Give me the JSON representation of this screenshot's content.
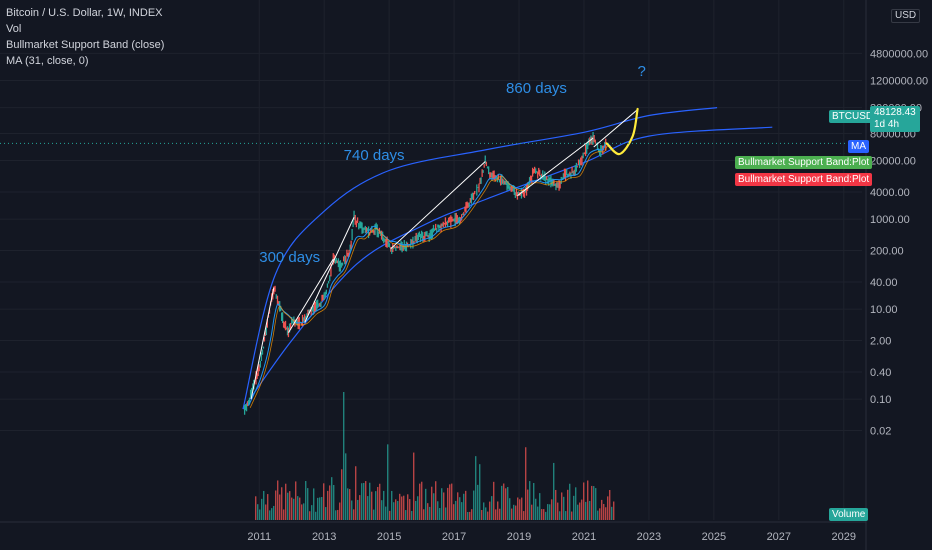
{
  "legend": {
    "symbol": "Bitcoin / U.S. Dollar, 1W, INDEX",
    "vol": "Vol",
    "band": "Bullmarket Support Band (close)",
    "ma": "MA (31, close, 0)"
  },
  "currency_label": "USD",
  "tags": {
    "ticker": "BTCUSD",
    "price": "48128.43",
    "countdown": "1d 4h",
    "ma": "MA",
    "band_green": "Bullmarket Support Band:Plot",
    "band_red": "Bullmarket Support Band:Plot",
    "volume": "Volume"
  },
  "colors": {
    "background": "#131722",
    "up": "#26a69a",
    "down": "#ef5350",
    "channel": "#2962ff",
    "annotation": "#2e8ee6",
    "projection": "#ffeb3b",
    "white_line": "#ffffff"
  },
  "chart_data": {
    "type": "line",
    "scale": "log",
    "x_ticks": [
      "2011",
      "2013",
      "2015",
      "2017",
      "2019",
      "2021",
      "2023",
      "2025",
      "2027",
      "2029"
    ],
    "y_ticks": [
      "4800000.00",
      "1200000.00",
      "300000.00",
      "80000.00",
      "20000.00",
      "4000.00",
      "1000.00",
      "200.00",
      "40.00",
      "10.00",
      "2.00",
      "0.40",
      "0.10",
      "0.02"
    ],
    "annotations": [
      "300 days",
      "740 days",
      "860 days",
      "?"
    ],
    "series": [
      {
        "name": "BTCUSD",
        "points": [
          [
            2010.55,
            0.06
          ],
          [
            2010.7,
            0.1
          ],
          [
            2010.9,
            0.3
          ],
          [
            2011.1,
            1.0
          ],
          [
            2011.25,
            5
          ],
          [
            2011.35,
            12
          ],
          [
            2011.45,
            30
          ],
          [
            2011.6,
            14
          ],
          [
            2011.75,
            5
          ],
          [
            2011.9,
            3
          ],
          [
            2012.0,
            5
          ],
          [
            2012.3,
            5
          ],
          [
            2012.6,
            10
          ],
          [
            2012.9,
            13
          ],
          [
            2013.1,
            30
          ],
          [
            2013.28,
            130
          ],
          [
            2013.5,
            90
          ],
          [
            2013.8,
            200
          ],
          [
            2013.92,
            1100
          ],
          [
            2014.1,
            700
          ],
          [
            2014.4,
            500
          ],
          [
            2014.6,
            600
          ],
          [
            2014.9,
            330
          ],
          [
            2015.05,
            220
          ],
          [
            2015.3,
            240
          ],
          [
            2015.6,
            250
          ],
          [
            2015.9,
            400
          ],
          [
            2016.2,
            420
          ],
          [
            2016.5,
            650
          ],
          [
            2016.9,
            900
          ],
          [
            2017.2,
            1100
          ],
          [
            2017.5,
            2500
          ],
          [
            2017.8,
            6000
          ],
          [
            2017.96,
            19000
          ],
          [
            2018.1,
            10000
          ],
          [
            2018.3,
            8000
          ],
          [
            2018.6,
            6500
          ],
          [
            2018.95,
            3300
          ],
          [
            2019.2,
            4000
          ],
          [
            2019.45,
            12000
          ],
          [
            2019.7,
            9000
          ],
          [
            2019.95,
            7200
          ],
          [
            2020.2,
            5000
          ],
          [
            2020.4,
            9500
          ],
          [
            2020.7,
            11000
          ],
          [
            2020.9,
            19000
          ],
          [
            2021.05,
            35000
          ],
          [
            2021.28,
            63000
          ],
          [
            2021.45,
            36000
          ],
          [
            2021.55,
            33000
          ],
          [
            2021.7,
            47000
          ]
        ]
      },
      {
        "name": "Volume",
        "values_2yr_groups": [
          0.5,
          0.45,
          0.3,
          0.35,
          0.3,
          0.45,
          0.35,
          0.3
        ]
      }
    ],
    "channel_upper": [
      [
        2010.5,
        0.06
      ],
      [
        2011.5,
        60
      ],
      [
        2013,
        1500
      ],
      [
        2015,
        12000
      ],
      [
        2018,
        35000
      ],
      [
        2021,
        85000
      ],
      [
        2023,
        200000
      ],
      [
        2025.1,
        300000
      ]
    ],
    "channel_lower": [
      [
        2010.5,
        0.06
      ],
      [
        2012,
        2
      ],
      [
        2014,
        100
      ],
      [
        2016,
        700
      ],
      [
        2018,
        2800
      ],
      [
        2021,
        18000
      ],
      [
        2023,
        70000
      ],
      [
        2026.8,
        110000
      ]
    ],
    "projection_points": [
      [
        2021.7,
        48000
      ],
      [
        2022.1,
        28000
      ],
      [
        2022.5,
        70000
      ],
      [
        2022.65,
        280000
      ]
    ],
    "last_price": 48128.43
  }
}
